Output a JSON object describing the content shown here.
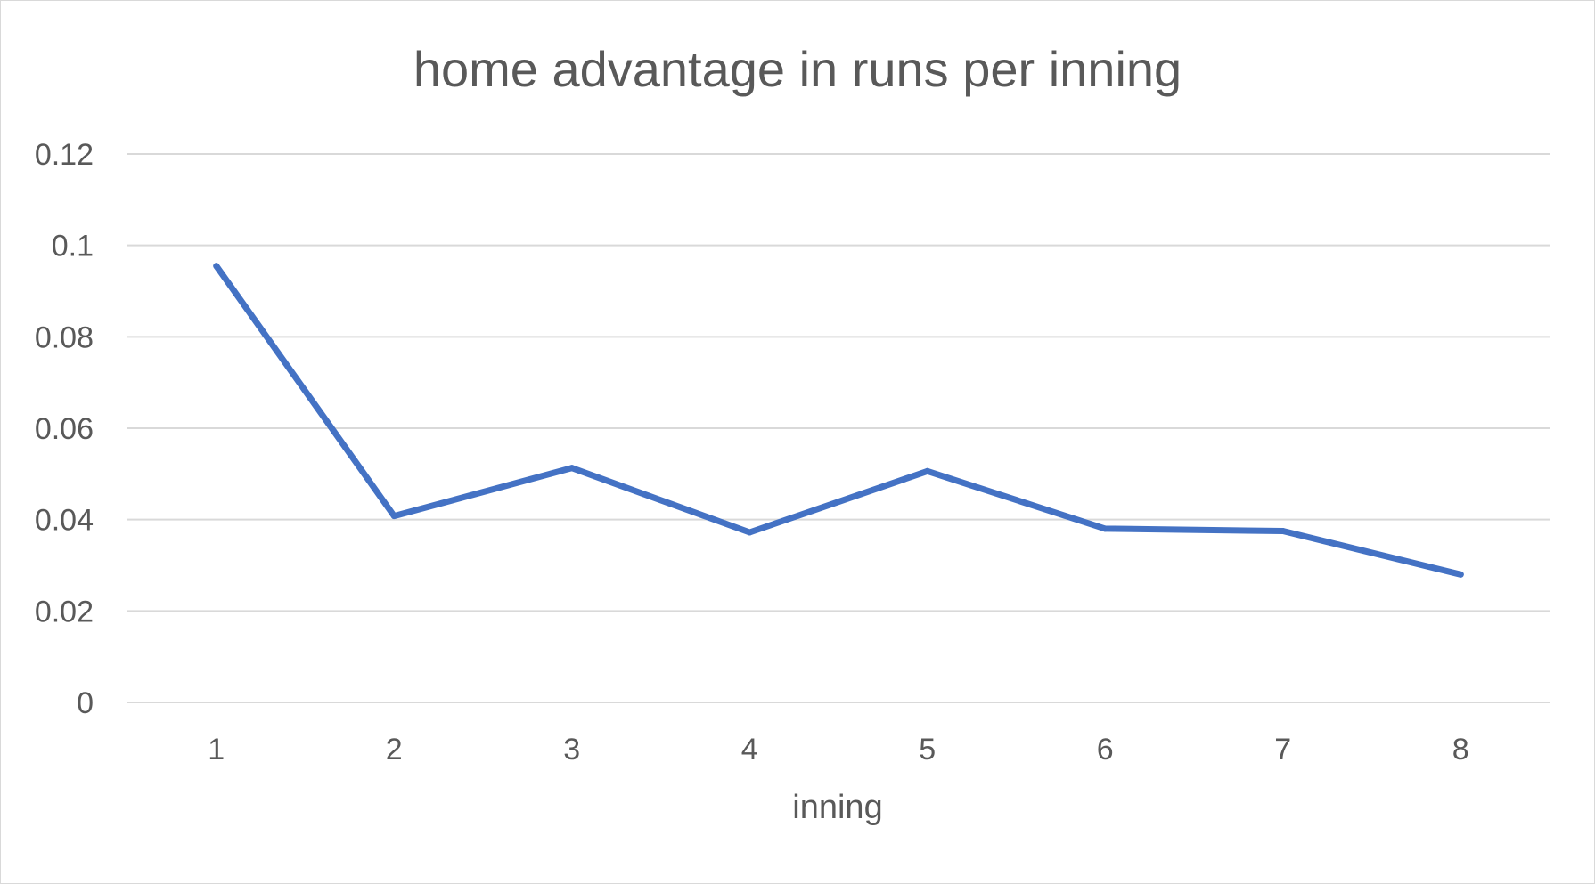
{
  "chart_data": {
    "type": "line",
    "title": "home advantage in runs per inning",
    "xlabel": "inning",
    "ylabel": "",
    "categories": [
      "1",
      "2",
      "3",
      "4",
      "5",
      "6",
      "7",
      "8"
    ],
    "series": [
      {
        "values": [
          0.0955,
          0.0408,
          0.0513,
          0.0372,
          0.0506,
          0.038,
          0.0375,
          0.028
        ],
        "color": "#4472c4"
      }
    ],
    "ylim": [
      0,
      0.12
    ],
    "yticks": [
      "0",
      "0.02",
      "0.04",
      "0.06",
      "0.08",
      "0.1",
      "0.12"
    ],
    "grid": true,
    "legend": "none"
  }
}
